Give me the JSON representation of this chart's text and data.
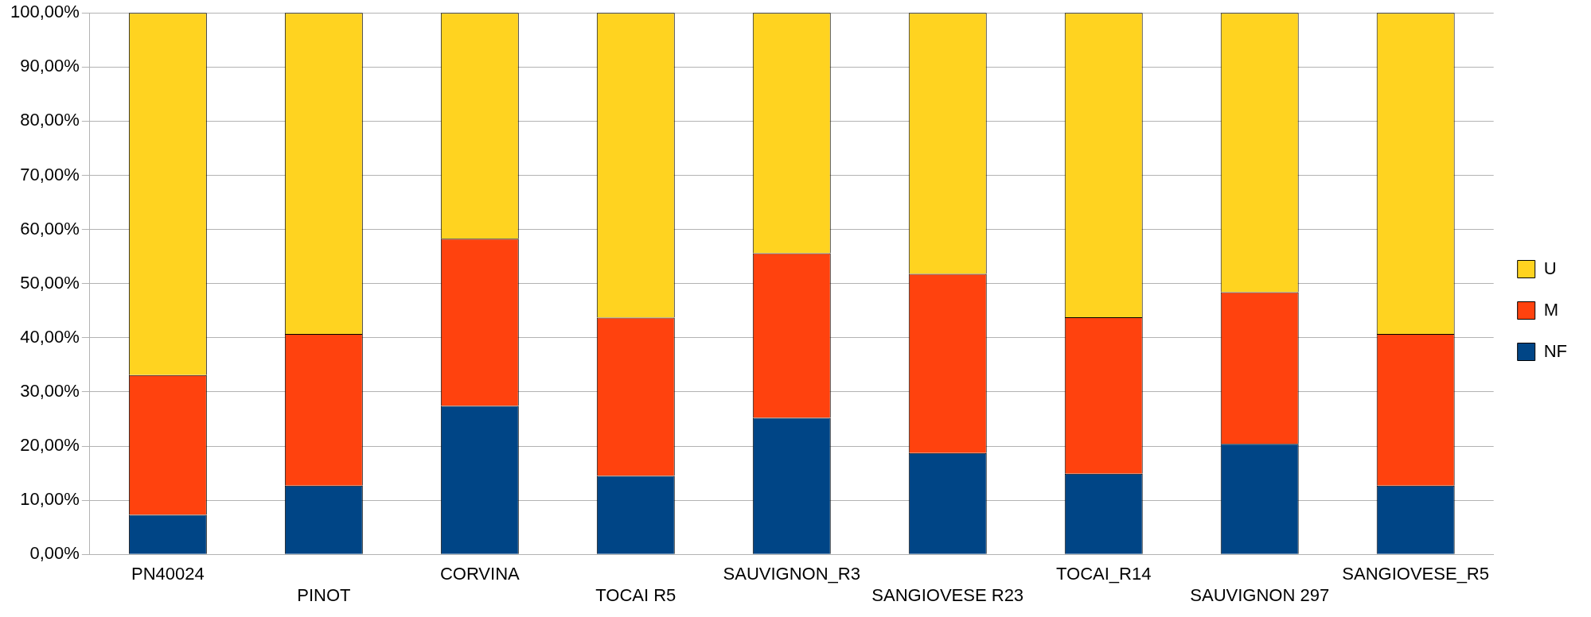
{
  "chart_data": {
    "type": "bar",
    "stacked": true,
    "categories": [
      "PN40024",
      "PINOT",
      "CORVINA",
      "TOCAI R5",
      "SAUVIGNON_R3",
      "SANGIOVESE R23",
      "TOCAI_R14",
      "SAUVIGNON 297",
      "SANGIOVESE_R5"
    ],
    "series": [
      {
        "name": "NF",
        "color": "#004586",
        "values": [
          7.3,
          12.7,
          27.4,
          14.5,
          25.2,
          18.7,
          14.9,
          20.4,
          12.7
        ]
      },
      {
        "name": "M",
        "color": "#ff420e",
        "values": [
          25.8,
          28.0,
          30.9,
          29.2,
          30.4,
          33.1,
          28.9,
          28.0,
          28.0
        ]
      },
      {
        "name": "U",
        "color": "#ffd320",
        "values": [
          66.9,
          59.3,
          41.7,
          56.3,
          44.4,
          48.2,
          56.2,
          51.6,
          59.3
        ]
      }
    ],
    "ylim": [
      0,
      100
    ],
    "yticks": [
      {
        "value": 0,
        "label": "0,00%"
      },
      {
        "value": 10,
        "label": "10,00%"
      },
      {
        "value": 20,
        "label": "20,00%"
      },
      {
        "value": 30,
        "label": "30,00%"
      },
      {
        "value": 40,
        "label": "40,00%"
      },
      {
        "value": 50,
        "label": "50,00%"
      },
      {
        "value": 60,
        "label": "60,00%"
      },
      {
        "value": 70,
        "label": "70,00%"
      },
      {
        "value": 80,
        "label": "80,00%"
      },
      {
        "value": 90,
        "label": "90,00%"
      },
      {
        "value": 100,
        "label": "100,00%"
      }
    ],
    "grid": "y",
    "legend": "right"
  }
}
